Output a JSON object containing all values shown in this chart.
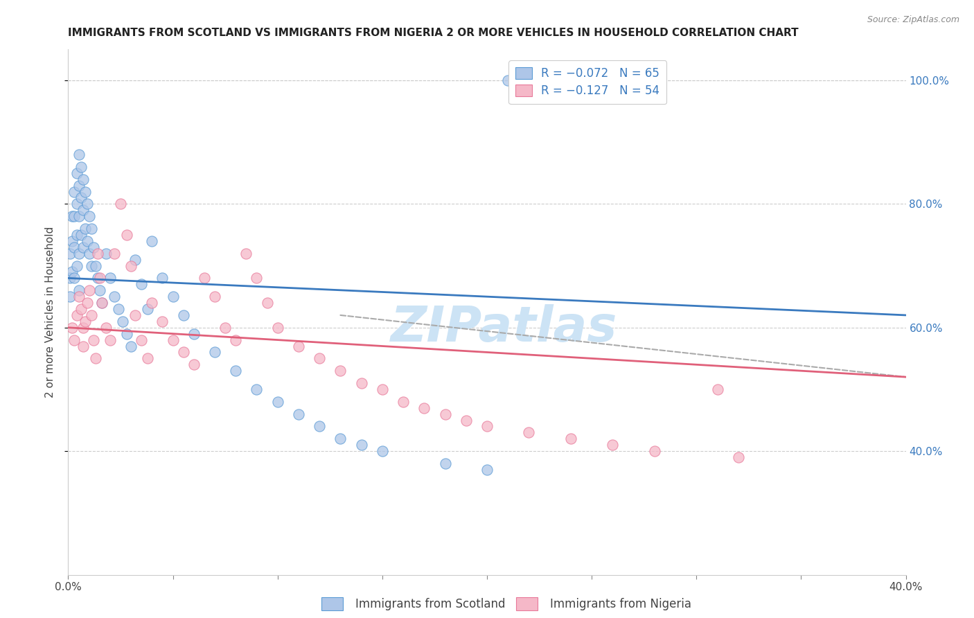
{
  "title": "IMMIGRANTS FROM SCOTLAND VS IMMIGRANTS FROM NIGERIA 2 OR MORE VEHICLES IN HOUSEHOLD CORRELATION CHART",
  "source": "Source: ZipAtlas.com",
  "ylabel": "2 or more Vehicles in Household",
  "xlim": [
    0.0,
    0.4
  ],
  "ylim": [
    0.2,
    1.05
  ],
  "x_tick_positions": [
    0.0,
    0.05,
    0.1,
    0.15,
    0.2,
    0.25,
    0.3,
    0.35,
    0.4
  ],
  "x_tick_labels": [
    "0.0%",
    "",
    "",
    "",
    "",
    "",
    "",
    "",
    "40.0%"
  ],
  "y_tick_positions": [
    0.4,
    0.6,
    0.8,
    1.0
  ],
  "y_tick_labels_right": [
    "40.0%",
    "60.0%",
    "80.0%",
    "100.0%"
  ],
  "legend_line1": "R = −0.072   N = 65",
  "legend_line2": "R = −0.127   N = 54",
  "scotland_color": "#aec6e8",
  "nigeria_color": "#f5b8c8",
  "scotland_edge_color": "#5b9bd5",
  "nigeria_edge_color": "#e8799a",
  "scotland_line_color": "#3a7abf",
  "nigeria_line_color": "#e0607a",
  "grid_color": "#cccccc",
  "watermark_color": "#cce3f5",
  "bottom_legend_scotland": "Immigrants from Scotland",
  "bottom_legend_nigeria": "Immigrants from Nigeria",
  "scotland_x": [
    0.001,
    0.001,
    0.001,
    0.002,
    0.002,
    0.002,
    0.003,
    0.003,
    0.003,
    0.003,
    0.004,
    0.004,
    0.004,
    0.004,
    0.005,
    0.005,
    0.005,
    0.005,
    0.005,
    0.006,
    0.006,
    0.006,
    0.007,
    0.007,
    0.007,
    0.008,
    0.008,
    0.009,
    0.009,
    0.01,
    0.01,
    0.011,
    0.011,
    0.012,
    0.013,
    0.014,
    0.015,
    0.016,
    0.018,
    0.02,
    0.022,
    0.024,
    0.026,
    0.028,
    0.03,
    0.032,
    0.035,
    0.038,
    0.04,
    0.045,
    0.05,
    0.055,
    0.06,
    0.07,
    0.08,
    0.09,
    0.1,
    0.11,
    0.12,
    0.13,
    0.14,
    0.15,
    0.18,
    0.2,
    0.21
  ],
  "scotland_y": [
    0.72,
    0.68,
    0.65,
    0.78,
    0.74,
    0.69,
    0.82,
    0.78,
    0.73,
    0.68,
    0.85,
    0.8,
    0.75,
    0.7,
    0.88,
    0.83,
    0.78,
    0.72,
    0.66,
    0.86,
    0.81,
    0.75,
    0.84,
    0.79,
    0.73,
    0.82,
    0.76,
    0.8,
    0.74,
    0.78,
    0.72,
    0.76,
    0.7,
    0.73,
    0.7,
    0.68,
    0.66,
    0.64,
    0.72,
    0.68,
    0.65,
    0.63,
    0.61,
    0.59,
    0.57,
    0.71,
    0.67,
    0.63,
    0.74,
    0.68,
    0.65,
    0.62,
    0.59,
    0.56,
    0.53,
    0.5,
    0.48,
    0.46,
    0.44,
    0.42,
    0.41,
    0.4,
    0.38,
    0.37,
    1.0
  ],
  "nigeria_x": [
    0.002,
    0.003,
    0.004,
    0.005,
    0.006,
    0.007,
    0.007,
    0.008,
    0.009,
    0.01,
    0.011,
    0.012,
    0.013,
    0.014,
    0.015,
    0.016,
    0.018,
    0.02,
    0.022,
    0.025,
    0.028,
    0.03,
    0.032,
    0.035,
    0.038,
    0.04,
    0.045,
    0.05,
    0.055,
    0.06,
    0.065,
    0.07,
    0.075,
    0.08,
    0.085,
    0.09,
    0.095,
    0.1,
    0.11,
    0.12,
    0.13,
    0.14,
    0.15,
    0.16,
    0.17,
    0.18,
    0.19,
    0.2,
    0.22,
    0.24,
    0.26,
    0.28,
    0.31,
    0.32
  ],
  "nigeria_y": [
    0.6,
    0.58,
    0.62,
    0.65,
    0.63,
    0.6,
    0.57,
    0.61,
    0.64,
    0.66,
    0.62,
    0.58,
    0.55,
    0.72,
    0.68,
    0.64,
    0.6,
    0.58,
    0.72,
    0.8,
    0.75,
    0.7,
    0.62,
    0.58,
    0.55,
    0.64,
    0.61,
    0.58,
    0.56,
    0.54,
    0.68,
    0.65,
    0.6,
    0.58,
    0.72,
    0.68,
    0.64,
    0.6,
    0.57,
    0.55,
    0.53,
    0.51,
    0.5,
    0.48,
    0.47,
    0.46,
    0.45,
    0.44,
    0.43,
    0.42,
    0.41,
    0.4,
    0.5,
    0.39
  ],
  "blue_line": [
    [
      0.0,
      0.4
    ],
    [
      0.68,
      0.62
    ]
  ],
  "pink_line": [
    [
      0.0,
      0.4
    ],
    [
      0.6,
      0.52
    ]
  ],
  "dash_line": [
    [
      0.13,
      0.4
    ],
    [
      0.62,
      0.52
    ]
  ]
}
